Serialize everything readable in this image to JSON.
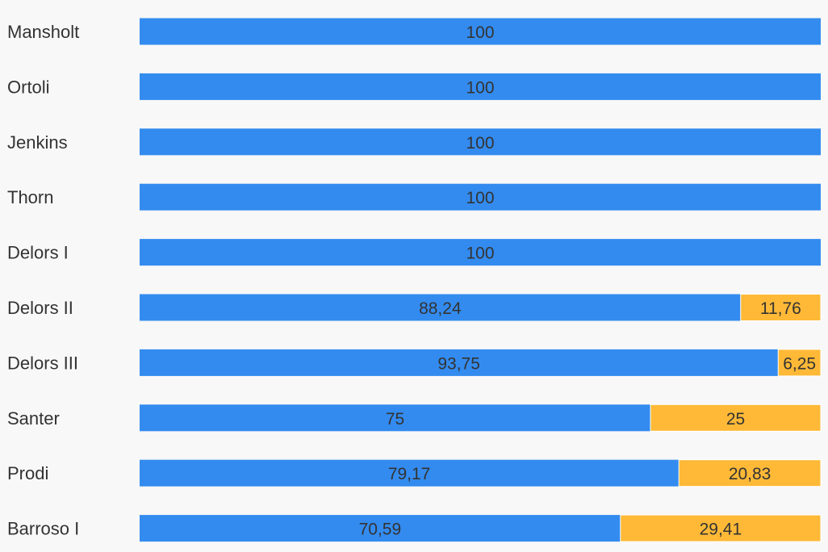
{
  "chart_data": {
    "type": "bar",
    "orientation": "horizontal",
    "stacked": true,
    "normalized_percent": true,
    "categories": [
      "Mansholt",
      "Ortoli",
      "Jenkins",
      "Thorn",
      "Delors I",
      "Delors II",
      "Delors III",
      "Santer",
      "Prodi",
      "Barroso I"
    ],
    "series": [
      {
        "color": "#338bef",
        "values": [
          100,
          100,
          100,
          100,
          100,
          88.24,
          93.75,
          75,
          79.17,
          70.59
        ],
        "labels": [
          "100",
          "100",
          "100",
          "100",
          "100",
          "88,24",
          "93,75",
          "75",
          "79,17",
          "70,59"
        ]
      },
      {
        "color": "#ffb937",
        "values": [
          0,
          0,
          0,
          0,
          0,
          11.76,
          6.25,
          25,
          20.83,
          29.41
        ],
        "labels": [
          "",
          "",
          "",
          "",
          "",
          "11,76",
          "6,25",
          "25",
          "20,83",
          "29,41"
        ]
      }
    ],
    "xlim": [
      0,
      100
    ],
    "grid": false,
    "legend": "none"
  }
}
